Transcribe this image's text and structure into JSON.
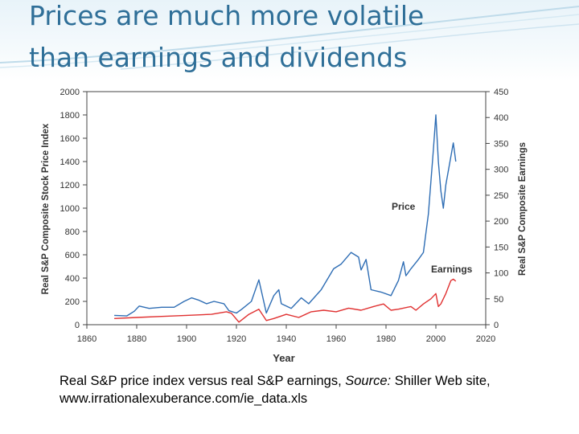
{
  "slide": {
    "title_line1": "Prices are much more volatile",
    "title_line2": "than earnings and dividends",
    "caption_part1": "Real S&P price index versus real S&P earnings, ",
    "caption_source": "Source:",
    "caption_part2": " Shiller Web site, www.irrationalexuberance.com/ie_data.xls",
    "title_color": "#2f6f98"
  },
  "chart_data": {
    "type": "line",
    "xlabel": "Year",
    "ylabel_left": "Real S&P Composite Stock Price Index",
    "ylabel_right": "Real S&P Composite Earnings",
    "xlim": [
      1860,
      2020
    ],
    "ylim_left": [
      0,
      2000
    ],
    "ylim_right": [
      0,
      450
    ],
    "x_ticks": [
      "1860",
      "1880",
      "1900",
      "1920",
      "1940",
      "1960",
      "1980",
      "2000",
      "2020"
    ],
    "y_left_ticks": [
      "0",
      "200",
      "400",
      "600",
      "800",
      "1000",
      "1200",
      "1400",
      "1600",
      "1800",
      "2000"
    ],
    "y_right_ticks": [
      "0",
      "50",
      "100",
      "150",
      "200",
      "250",
      "300",
      "350",
      "400",
      "450"
    ],
    "grid": false,
    "annotations": [
      "Price",
      "Earnings"
    ],
    "series": [
      {
        "name": "Price",
        "axis": "left",
        "color": "#2e6db4",
        "x": [
          1871,
          1876,
          1879,
          1881,
          1885,
          1890,
          1895,
          1899,
          1902,
          1905,
          1908,
          1911,
          1915,
          1917,
          1920,
          1922,
          1926,
          1929,
          1932,
          1935,
          1937,
          1938,
          1942,
          1946,
          1949,
          1954,
          1959,
          1962,
          1966,
          1969,
          1970,
          1972,
          1974,
          1978,
          1982,
          1985,
          1987,
          1988,
          1990,
          1993,
          1995,
          1997,
          1999,
          2000,
          2001,
          2002,
          2003,
          2004,
          2007,
          2008
        ],
        "y": [
          80,
          75,
          115,
          160,
          140,
          150,
          150,
          200,
          230,
          210,
          180,
          200,
          180,
          120,
          100,
          130,
          200,
          385,
          100,
          250,
          300,
          180,
          140,
          230,
          180,
          300,
          480,
          520,
          620,
          580,
          470,
          560,
          300,
          280,
          250,
          380,
          540,
          420,
          480,
          560,
          620,
          950,
          1500,
          1800,
          1400,
          1150,
          1000,
          1200,
          1560,
          1400
        ]
      },
      {
        "name": "Earnings",
        "axis": "right",
        "color": "#e03030",
        "x": [
          1871,
          1880,
          1890,
          1900,
          1910,
          1916,
          1918,
          1921,
          1925,
          1929,
          1932,
          1935,
          1940,
          1945,
          1950,
          1955,
          1960,
          1965,
          1970,
          1975,
          1979,
          1982,
          1985,
          1990,
          1992,
          1995,
          1998,
          2000,
          2001,
          2002,
          2004,
          2006,
          2007,
          2008
        ],
        "y": [
          12,
          14,
          16,
          18,
          20,
          25,
          22,
          5,
          20,
          30,
          8,
          12,
          20,
          14,
          25,
          28,
          25,
          32,
          28,
          35,
          40,
          28,
          30,
          35,
          28,
          40,
          50,
          60,
          35,
          40,
          60,
          85,
          88,
          84
        ]
      }
    ]
  }
}
